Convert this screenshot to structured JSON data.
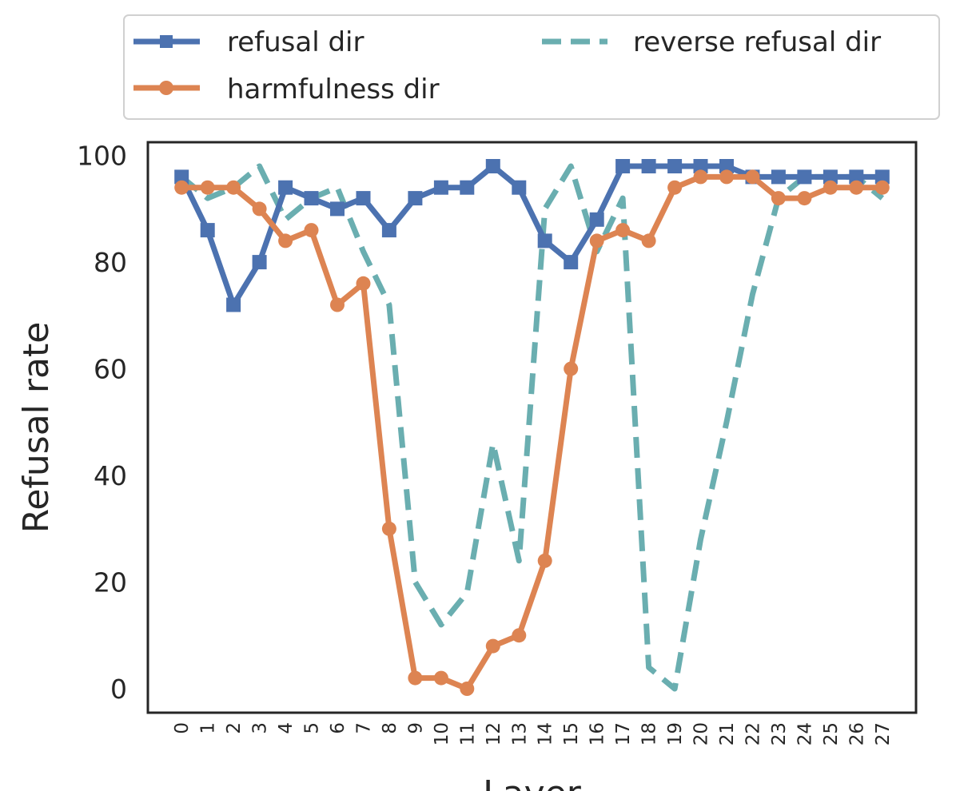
{
  "chart_data": {
    "type": "line",
    "xlabel": "Layer",
    "ylabel": "Refusal rate",
    "x": [
      0,
      1,
      2,
      3,
      4,
      5,
      6,
      7,
      8,
      9,
      10,
      11,
      12,
      13,
      14,
      15,
      16,
      17,
      18,
      19,
      20,
      21,
      22,
      23,
      24,
      25,
      26,
      27
    ],
    "xlim": [
      -1.3,
      28.3
    ],
    "ylim": [
      -4.5,
      102.5
    ],
    "yticks": [
      0,
      20,
      40,
      60,
      80,
      100
    ],
    "grid": false,
    "legend_position": "top",
    "series": [
      {
        "name": "refusal dir",
        "color": "#4c72b0",
        "line_style": "solid",
        "marker": "square",
        "values": [
          96,
          86,
          72,
          80,
          94,
          92,
          90,
          92,
          86,
          92,
          94,
          94,
          98,
          94,
          84,
          80,
          88,
          98,
          98,
          98,
          98,
          98,
          96,
          96,
          96,
          96,
          96,
          96
        ]
      },
      {
        "name": "harmfulness dir",
        "color": "#dd8452",
        "line_style": "solid",
        "marker": "circle",
        "values": [
          94,
          94,
          94,
          90,
          84,
          86,
          72,
          76,
          30,
          2,
          2,
          0,
          8,
          10,
          24,
          60,
          84,
          86,
          84,
          94,
          96,
          96,
          96,
          92,
          92,
          94,
          94,
          94
        ]
      },
      {
        "name": "reverse refusal dir",
        "color": "#6aaeb0",
        "line_style": "dashed",
        "marker": "none",
        "values": [
          96,
          92,
          94,
          98,
          88,
          92,
          94,
          82,
          72,
          20,
          12,
          18,
          46,
          24,
          90,
          98,
          82,
          92,
          4,
          0,
          28,
          50,
          74,
          92,
          96,
          96,
          96,
          92
        ]
      }
    ]
  }
}
